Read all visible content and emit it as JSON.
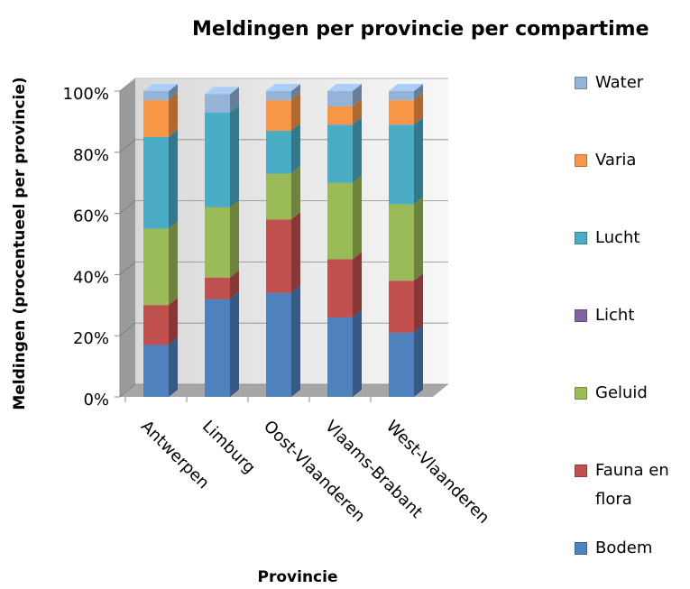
{
  "chart_data": {
    "type": "bar3d_stacked",
    "title": "Meldingen per provincie per compartime",
    "y_label": "Meldingen (procentueel per provincie)",
    "x_label": "Provincie",
    "categories": [
      "Antwerpen",
      "Limburg",
      "Oost-Vlaanderen",
      "Vlaams-Brabant",
      "West-Vlaanderen"
    ],
    "series": [
      {
        "name": "Bodem",
        "color": "#4f81bd",
        "values": [
          17,
          32,
          34,
          26,
          21
        ]
      },
      {
        "name": "Fauna en flora",
        "color": "#c0504d",
        "values": [
          13,
          7,
          24,
          19,
          17
        ]
      },
      {
        "name": "Geluid",
        "color": "#9bbb59",
        "values": [
          25,
          23,
          15,
          25,
          25
        ]
      },
      {
        "name": "Licht",
        "color": "#8064a2",
        "values": [
          0,
          0,
          0,
          0,
          0
        ]
      },
      {
        "name": "Lucht",
        "color": "#4bacc6",
        "values": [
          30,
          31,
          14,
          19,
          26
        ]
      },
      {
        "name": "Varia",
        "color": "#f79646",
        "values": [
          12,
          0,
          10,
          6,
          8
        ]
      },
      {
        "name": "Water",
        "color": "#95b3d7",
        "values": [
          3,
          6,
          3,
          5,
          3
        ]
      }
    ],
    "ylim": [
      0,
      100
    ],
    "yticks": [
      {
        "value": 0,
        "label": "0%"
      },
      {
        "value": 20,
        "label": "20%"
      },
      {
        "value": 40,
        "label": "40%"
      },
      {
        "value": 60,
        "label": "60%"
      },
      {
        "value": 80,
        "label": "80%"
      },
      {
        "value": 100,
        "label": "100%"
      }
    ],
    "grid": true,
    "legend": "right"
  }
}
